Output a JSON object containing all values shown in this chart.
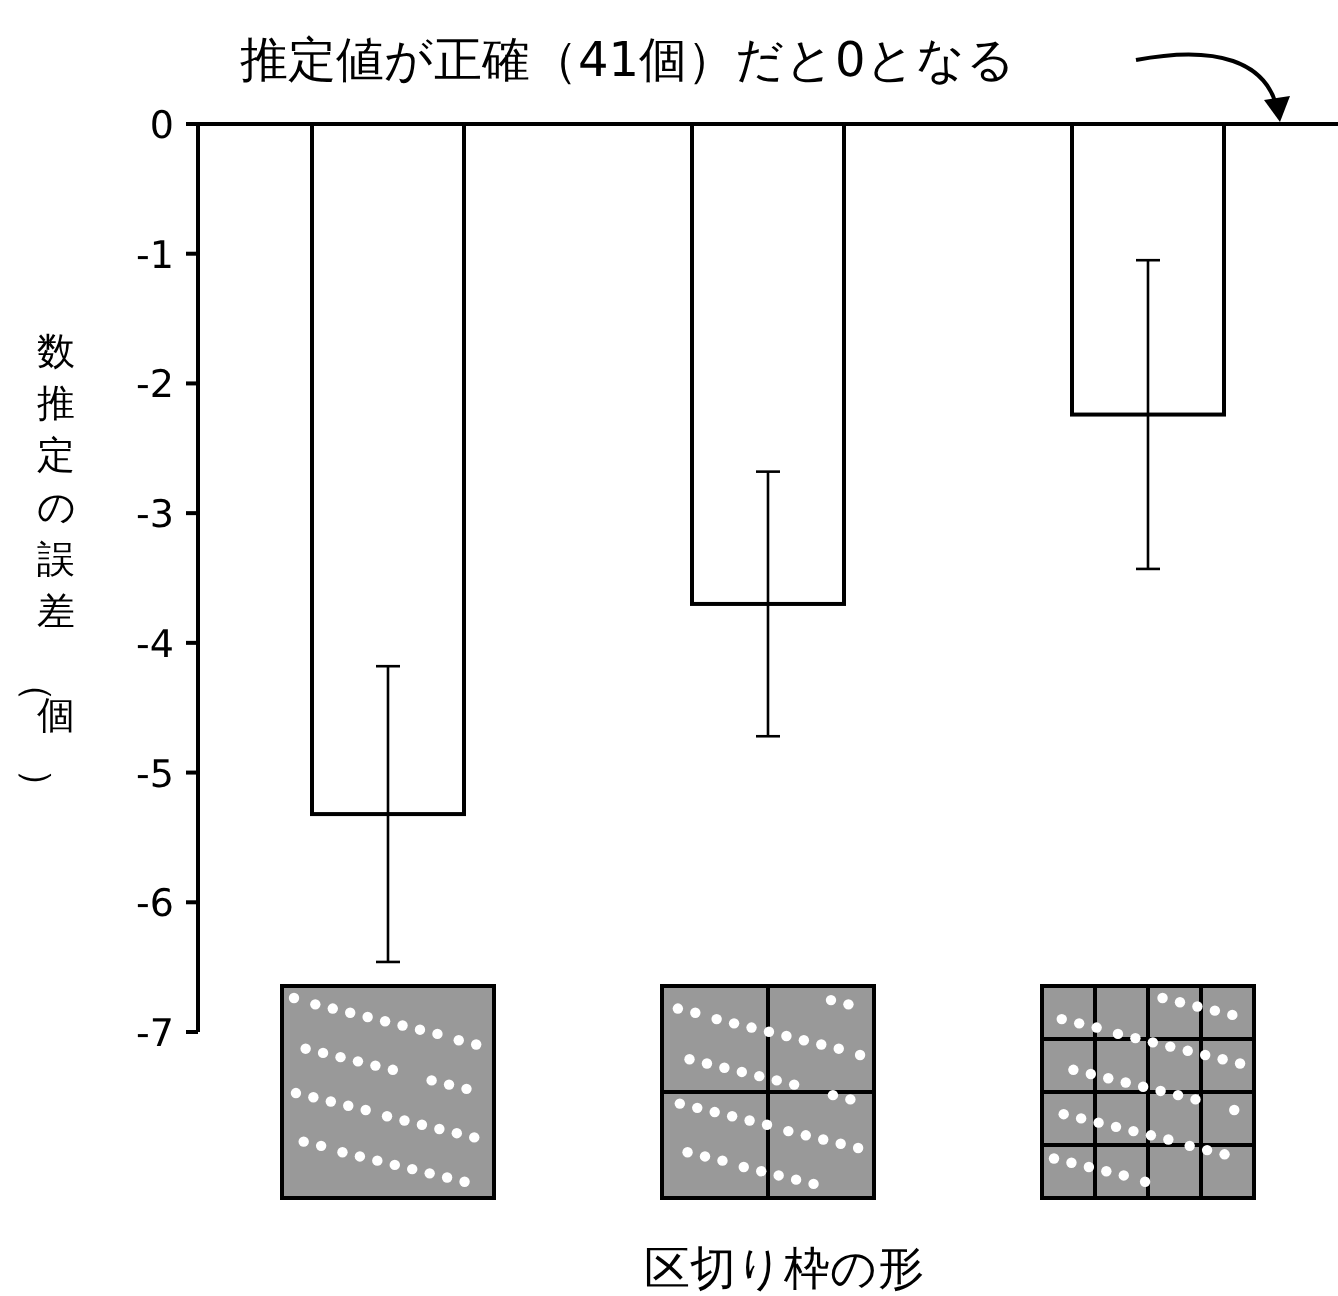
{
  "chart_data": {
    "type": "bar",
    "categories": [
      null,
      null,
      null
    ],
    "values": [
      -5.32,
      -3.7,
      -2.24
    ],
    "errors": [
      1.14,
      1.02,
      1.19
    ],
    "color": "#ffffff",
    "ylim": [
      -7,
      0
    ],
    "yticks": [
      0,
      -1,
      -2,
      -3,
      -4,
      -5,
      -6,
      -7
    ],
    "ylabel": "数推定の誤差（個）",
    "xlabel": "区切り枠の形",
    "annotations": [
      "推定値が正確（41個）だと0となる"
    ]
  }
}
